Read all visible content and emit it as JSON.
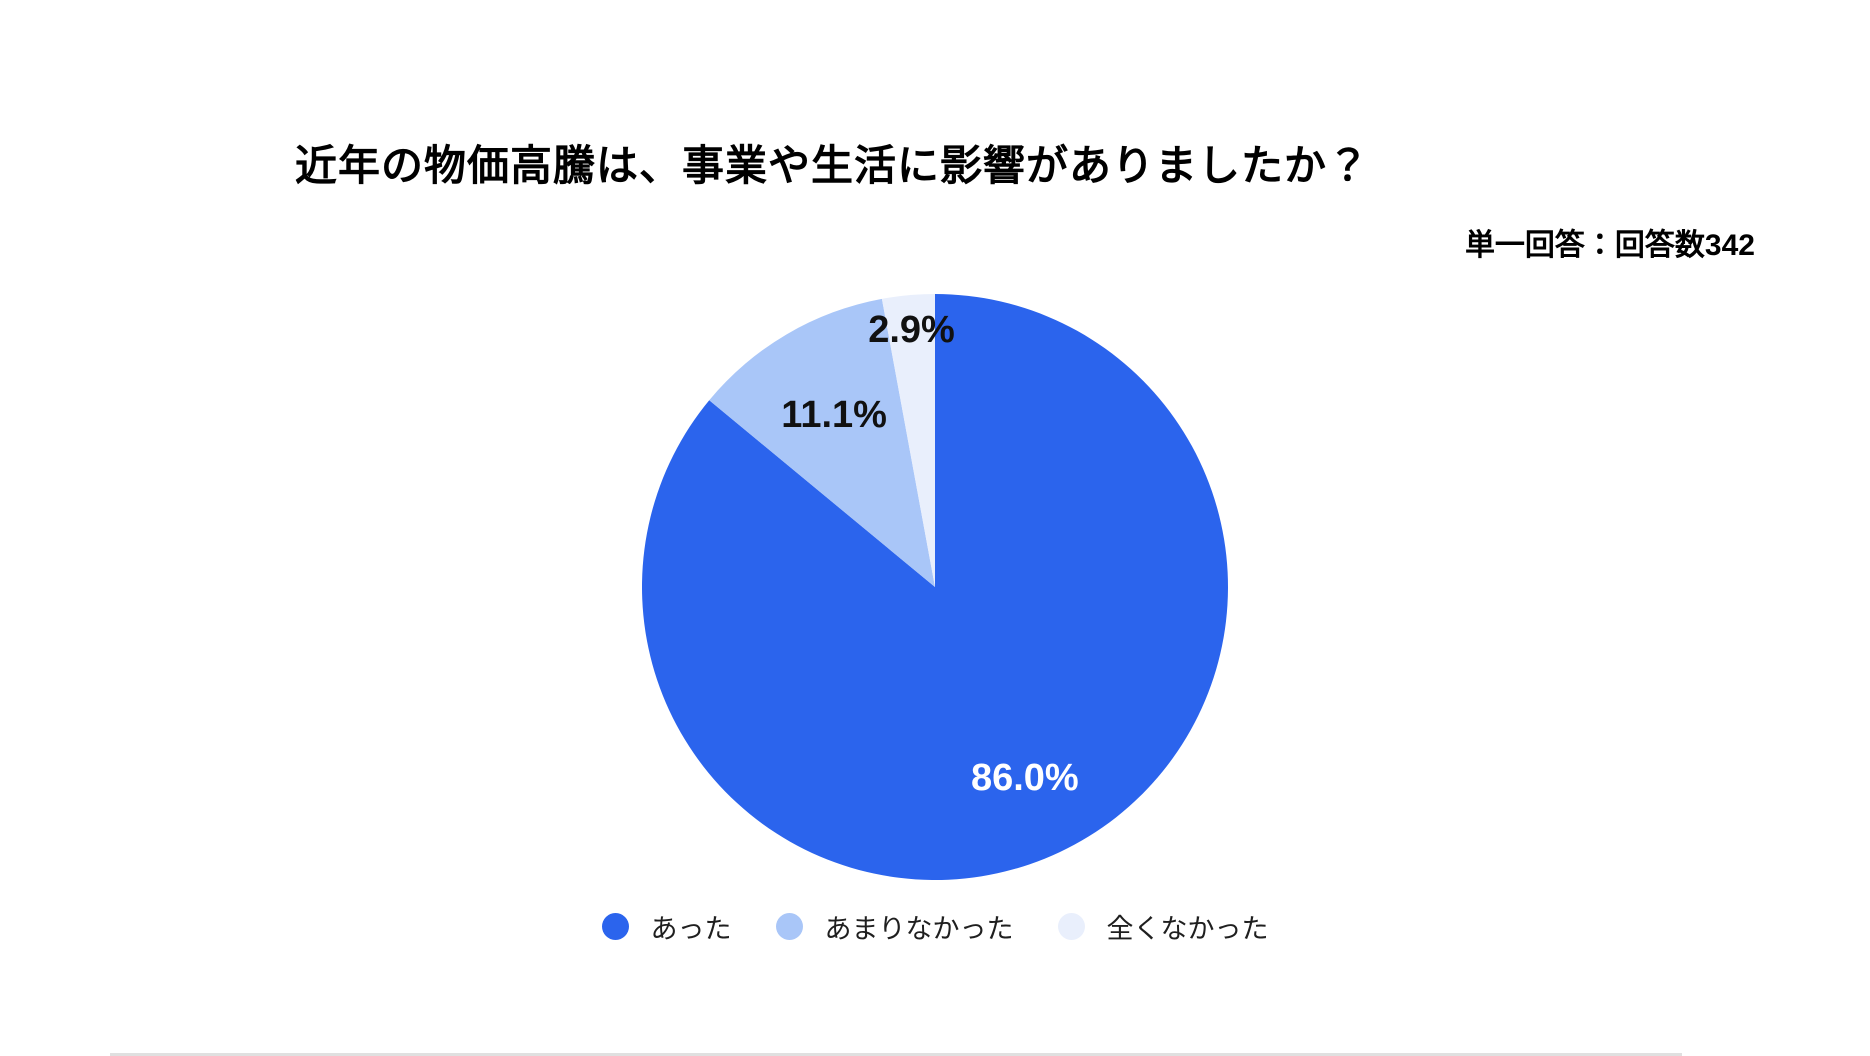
{
  "chart_data": {
    "type": "pie",
    "title": "近年の物価高騰は、事業や生活に影響がありましたか？",
    "subtitle": "単一回答：回答数342",
    "respondent_count": 342,
    "unit": "%",
    "start_angle_deg": 0,
    "direction": "clockwise",
    "legend_position": "bottom",
    "slices": [
      {
        "label": "あった",
        "value": 86.0,
        "display": "86.0%",
        "color": "#2B64ED",
        "label_color": "#ffffff",
        "label_radius": 0.72
      },
      {
        "label": "あまりなかった",
        "value": 11.1,
        "display": "11.1%",
        "color": "#A9C6F8",
        "label_color": "#111111",
        "label_radius": 0.68
      },
      {
        "label": "全くなかった",
        "value": 2.9,
        "display": "2.9%",
        "color": "#E9EFFC",
        "label_color": "#111111",
        "label_radius": 0.88
      }
    ]
  }
}
